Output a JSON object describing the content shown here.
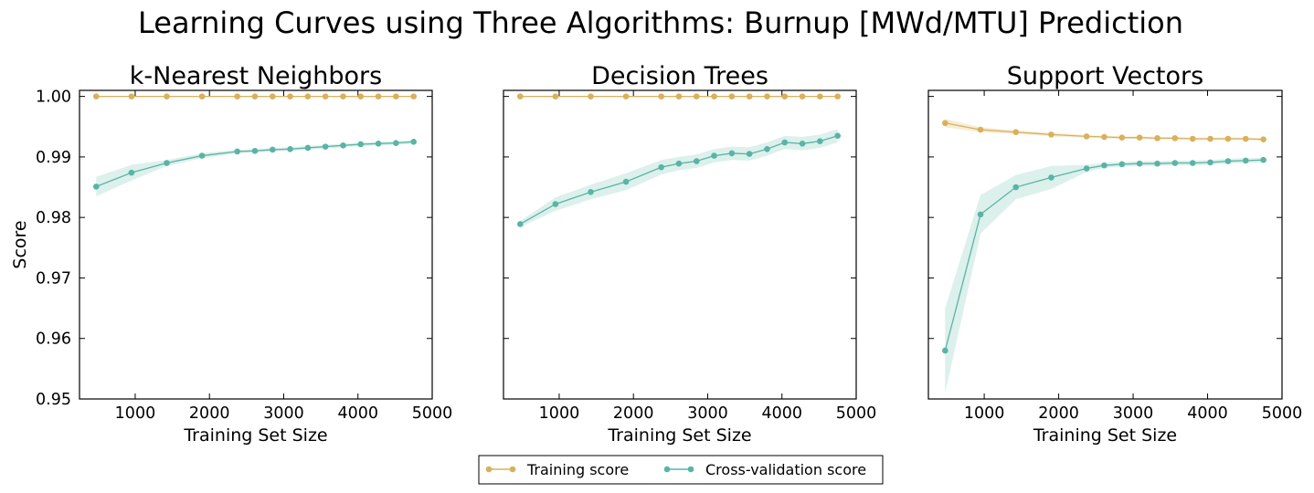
{
  "figure": {
    "title": "Learning Curves using Three Algorithms: Burnup [MWd/MTU] Prediction"
  },
  "legend": {
    "placement": "bottom-center",
    "entries": [
      {
        "label": "Training score",
        "color": "#d9b05c"
      },
      {
        "label": "Cross-validation score",
        "color": "#5ab4a5"
      }
    ]
  },
  "chart_data": [
    {
      "type": "line",
      "title": "k-Nearest Neighbors",
      "xlabel": "Training Set Size",
      "ylabel": "Score",
      "xlim": [
        250,
        5000
      ],
      "ylim": [
        0.95,
        1.001
      ],
      "xticks": [
        "1000",
        "2000",
        "3000",
        "4000",
        "5000"
      ],
      "yticks": [
        "0.95",
        "0.96",
        "0.97",
        "0.98",
        "0.99",
        "1.00"
      ],
      "grid": false,
      "x": [
        475,
        950,
        1425,
        1900,
        2375,
        2612,
        2850,
        3087,
        3325,
        3562,
        3800,
        4037,
        4275,
        4512,
        4750
      ],
      "series": [
        {
          "name": "Training score",
          "color": "#d9b05c",
          "values": [
            1.0,
            1.0,
            1.0,
            1.0,
            1.0,
            1.0,
            1.0,
            1.0,
            1.0,
            1.0,
            1.0,
            1.0,
            1.0,
            1.0,
            1.0
          ],
          "band": [
            0.0,
            0.0,
            0.0,
            0.0,
            0.0,
            0.0,
            0.0,
            0.0,
            0.0,
            0.0,
            0.0,
            0.0,
            0.0,
            0.0,
            0.0
          ]
        },
        {
          "name": "Cross-validation score",
          "color": "#5ab4a5",
          "values": [
            0.9851,
            0.9874,
            0.989,
            0.9902,
            0.9909,
            0.991,
            0.9912,
            0.9913,
            0.9915,
            0.9917,
            0.9919,
            0.9921,
            0.9922,
            0.9923,
            0.9925
          ],
          "band": [
            0.0016,
            0.0013,
            0.0005,
            0.0004,
            0.0003,
            0.0003,
            0.0003,
            0.0003,
            0.0003,
            0.0003,
            0.0003,
            0.0003,
            0.0003,
            0.0003,
            0.0003
          ]
        }
      ]
    },
    {
      "type": "line",
      "title": "Decision Trees",
      "xlabel": "Training Set Size",
      "ylabel": "",
      "xlim": [
        250,
        5000
      ],
      "ylim": [
        0.95,
        1.001
      ],
      "xticks": [
        "1000",
        "2000",
        "3000",
        "4000",
        "5000"
      ],
      "yticks": [],
      "grid": false,
      "x": [
        475,
        950,
        1425,
        1900,
        2375,
        2612,
        2850,
        3087,
        3325,
        3562,
        3800,
        4037,
        4275,
        4512,
        4750
      ],
      "series": [
        {
          "name": "Training score",
          "color": "#d9b05c",
          "values": [
            1.0,
            1.0,
            1.0,
            1.0,
            1.0,
            1.0,
            1.0,
            1.0,
            1.0,
            1.0,
            1.0,
            1.0,
            1.0,
            1.0,
            1.0
          ],
          "band": [
            0.0,
            0.0,
            0.0,
            0.0,
            0.0,
            0.0,
            0.0,
            0.0,
            0.0,
            0.0,
            0.0,
            0.0,
            0.0,
            0.0,
            0.0
          ]
        },
        {
          "name": "Cross-validation score",
          "color": "#5ab4a5",
          "values": [
            0.9789,
            0.9822,
            0.9842,
            0.9859,
            0.9883,
            0.9889,
            0.9893,
            0.9902,
            0.9906,
            0.9905,
            0.9913,
            0.9924,
            0.9922,
            0.9926,
            0.9935
          ],
          "band": [
            0.0005,
            0.0011,
            0.0012,
            0.0014,
            0.0012,
            0.0011,
            0.0011,
            0.0011,
            0.0011,
            0.0011,
            0.0011,
            0.0011,
            0.0011,
            0.0011,
            0.0011
          ]
        }
      ]
    },
    {
      "type": "line",
      "title": "Support Vectors",
      "xlabel": "Training Set Size",
      "ylabel": "",
      "xlim": [
        250,
        5000
      ],
      "ylim": [
        0.95,
        1.001
      ],
      "xticks": [
        "1000",
        "2000",
        "3000",
        "4000",
        "5000"
      ],
      "yticks": [],
      "grid": false,
      "x": [
        475,
        950,
        1425,
        1900,
        2375,
        2612,
        2850,
        3087,
        3325,
        3562,
        3800,
        4037,
        4275,
        4512,
        4750
      ],
      "series": [
        {
          "name": "Training score",
          "color": "#d9b05c",
          "values": [
            0.9956,
            0.9945,
            0.9941,
            0.9937,
            0.9934,
            0.9933,
            0.9932,
            0.9932,
            0.9931,
            0.9931,
            0.993,
            0.993,
            0.993,
            0.993,
            0.9929
          ],
          "band": [
            0.0007,
            0.0004,
            0.0003,
            0.0003,
            0.0002,
            0.0002,
            0.0002,
            0.0002,
            0.0002,
            0.0002,
            0.0002,
            0.0002,
            0.0002,
            0.0002,
            0.0002
          ]
        },
        {
          "name": "Cross-validation score",
          "color": "#5ab4a5",
          "values": [
            0.958,
            0.9805,
            0.985,
            0.9866,
            0.9881,
            0.9886,
            0.9888,
            0.9889,
            0.9889,
            0.989,
            0.989,
            0.9891,
            0.9893,
            0.9894,
            0.9895
          ],
          "band": [
            0.007,
            0.0032,
            0.002,
            0.0019,
            0.0006,
            0.0004,
            0.0004,
            0.0004,
            0.0004,
            0.0004,
            0.0004,
            0.0004,
            0.0004,
            0.0004,
            0.0004
          ]
        }
      ]
    }
  ]
}
